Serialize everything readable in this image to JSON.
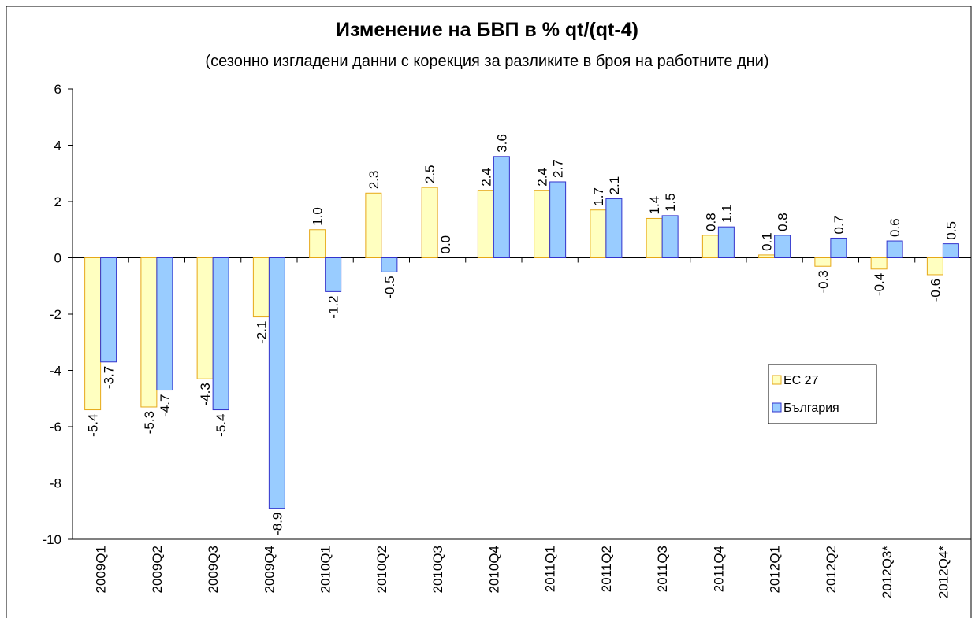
{
  "chart_data": {
    "type": "bar",
    "title": "Изменение на БВП в % qt/(qt-4)",
    "subtitle": "(сезонно изгладени данни с корекция за разликите в броя на работните дни)",
    "categories": [
      "2009Q1",
      "2009Q2",
      "2009Q3",
      "2009Q4",
      "2010Q1",
      "2010Q2",
      "2010Q3",
      "2010Q4",
      "2011Q1",
      "2011Q2",
      "2011Q3",
      "2011Q4",
      "2012Q1",
      "2012Q2",
      "2012Q3*",
      "2012Q4*"
    ],
    "series": [
      {
        "name": "ЕС 27",
        "color": "#ffffc0",
        "stroke": "#e6a817",
        "values": [
          -5.4,
          -5.3,
          -4.3,
          -2.1,
          1.0,
          2.3,
          2.5,
          2.4,
          2.4,
          1.7,
          1.4,
          0.8,
          0.1,
          -0.3,
          -0.4,
          -0.6
        ],
        "value_labels": [
          "-5.4",
          "-5.3",
          "-4.3",
          "-2.1",
          "1.0",
          "2.3",
          "2.5",
          "2.4",
          "2.4",
          "1.7",
          "1.4",
          "0.8",
          "0.1",
          "-0.3",
          "-0.4",
          "-0.6"
        ]
      },
      {
        "name": "България",
        "color": "#99ccff",
        "stroke": "#3333cc",
        "values": [
          -3.7,
          -4.7,
          -5.4,
          -8.9,
          -1.2,
          -0.5,
          0.0,
          3.6,
          2.7,
          2.1,
          1.5,
          1.1,
          0.8,
          0.7,
          0.6,
          0.5
        ],
        "value_labels": [
          "-3.7",
          "-4.7",
          "-5.4",
          "-8.9",
          "-1.2",
          "-0.5",
          "0.0",
          "3.6",
          "2.7",
          "2.1",
          "1.5",
          "1.1",
          "0.8",
          "0.7",
          "0.6",
          "0.5"
        ]
      }
    ],
    "ylim": [
      -10,
      6
    ],
    "yticks": [
      -10,
      -8,
      -6,
      -4,
      -2,
      0,
      2,
      4,
      6
    ],
    "grid": false,
    "legend": "right"
  }
}
